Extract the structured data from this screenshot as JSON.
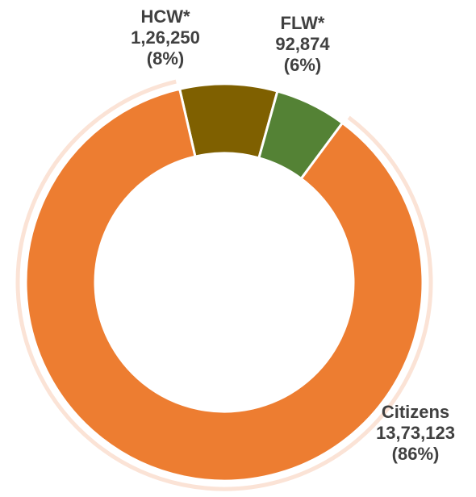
{
  "chart_data": {
    "type": "pie",
    "variant": "donut",
    "categories": [
      "Citizens",
      "HCW*",
      "FLW*"
    ],
    "values": [
      1373123,
      126250,
      92874
    ],
    "value_labels": [
      "13,73,123",
      "1,26,250",
      "92,874"
    ],
    "percent_labels": [
      "(86%)",
      "(8%)",
      "(6%)"
    ],
    "colors": [
      "#ED7D31",
      "#7F6000",
      "#548235"
    ],
    "highlight_ring_color": "#FBE3D6",
    "start_angle_deg": -13,
    "direction": "clockwise",
    "title": "",
    "legend": "none"
  }
}
